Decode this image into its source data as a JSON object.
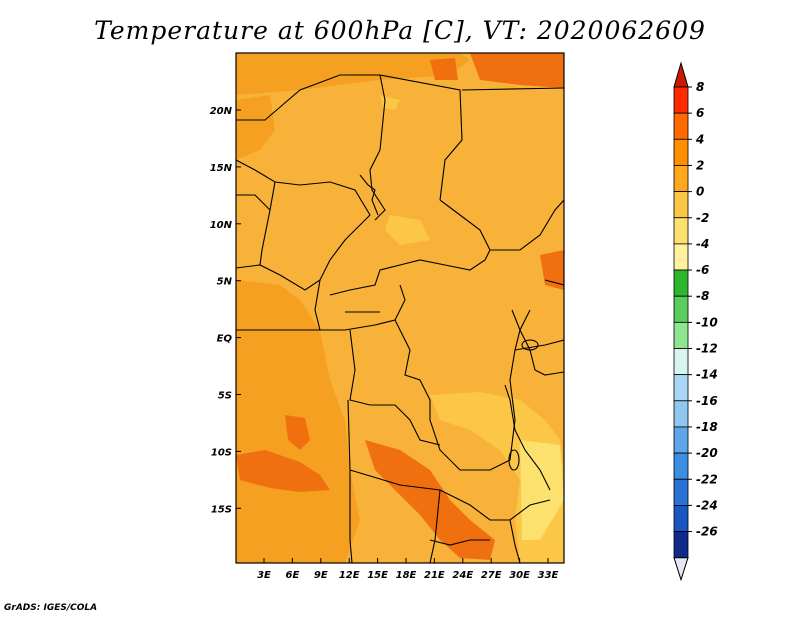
{
  "title": "Temperature at 600hPa [C], VT: 2020062609",
  "credit": "GrADS: IGES/COLA",
  "map": {
    "lat_labels": [
      "20N",
      "15N",
      "10N",
      "5N",
      "EQ",
      "5S",
      "10S",
      "15S"
    ],
    "lon_labels": [
      "3E",
      "6E",
      "9E",
      "12E",
      "15E",
      "18E",
      "21E",
      "24E",
      "27E",
      "30E",
      "33E"
    ],
    "background_color": "#f8b23a"
  },
  "colorbar": {
    "labels": [
      "8",
      "6",
      "4",
      "2",
      "0",
      "-2",
      "-4",
      "-6",
      "-8",
      "-10",
      "-12",
      "-14",
      "-16",
      "-18",
      "-20",
      "-22",
      "-24",
      "-26"
    ],
    "colors": [
      "#ff2a00",
      "#ff6a00",
      "#ff8f00",
      "#ffa81e",
      "#fcc646",
      "#fde16e",
      "#fff1a0",
      "#2fb62f",
      "#5ccd5c",
      "#8ee58e",
      "#d7f5ee",
      "#a8d8f4",
      "#8ec8f0",
      "#5ea6e8",
      "#3c8ee0",
      "#2a72d6",
      "#1a56c2",
      "#102a8a"
    ],
    "top_cap_color": "#cc1a00",
    "bottom_cap_color": "#e6e6f5"
  }
}
